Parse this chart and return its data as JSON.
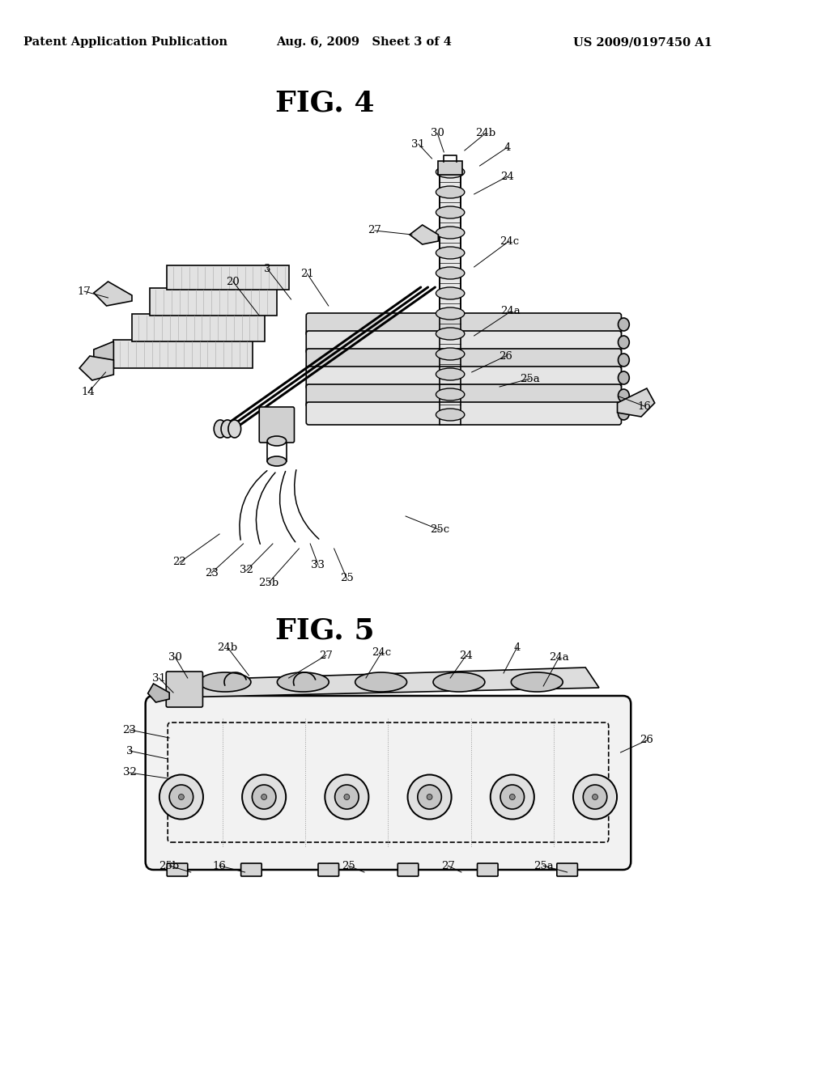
{
  "background_color": "#ffffff",
  "header_left": "Patent Application Publication",
  "header_center": "Aug. 6, 2009   Sheet 3 of 4",
  "header_right": "US 2009/0197450 A1",
  "fig4_label": "FIG. 4",
  "fig5_label": "FIG. 5",
  "line_color": "#000000",
  "line_width": 1.2,
  "annotation_fontsize": 9.5
}
